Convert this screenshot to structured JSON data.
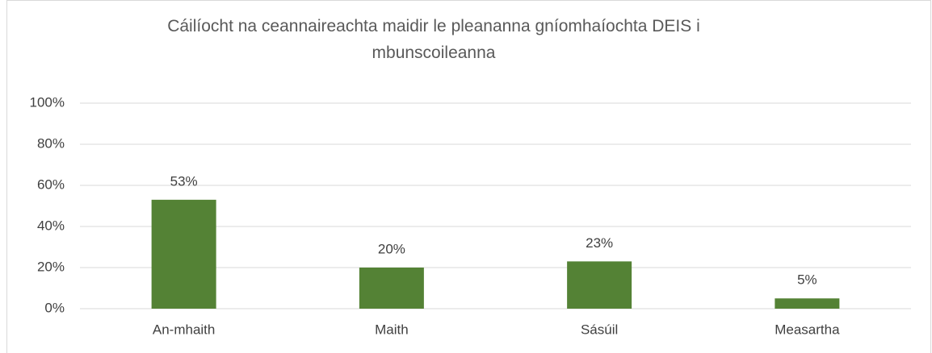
{
  "chart_data": {
    "type": "bar",
    "title": "Cáilíocht na ceannaireachta maidir le pleananna gníomhaíochta DEIS i mbunscoileanna",
    "categories": [
      "An-mhaith",
      "Maith",
      "Sásúil",
      "Measartha"
    ],
    "values": [
      53,
      20,
      23,
      5
    ],
    "value_labels": [
      "53%",
      "20%",
      "23%",
      "5%"
    ],
    "color": "#548235",
    "ylim": [
      0,
      100
    ],
    "yticks": [
      {
        "value": 0,
        "label": "0%"
      },
      {
        "value": 20,
        "label": "20%"
      },
      {
        "value": 40,
        "label": "40%"
      },
      {
        "value": 60,
        "label": "60%"
      },
      {
        "value": 80,
        "label": "80%"
      },
      {
        "value": 100,
        "label": "100%"
      }
    ],
    "grid": true
  }
}
